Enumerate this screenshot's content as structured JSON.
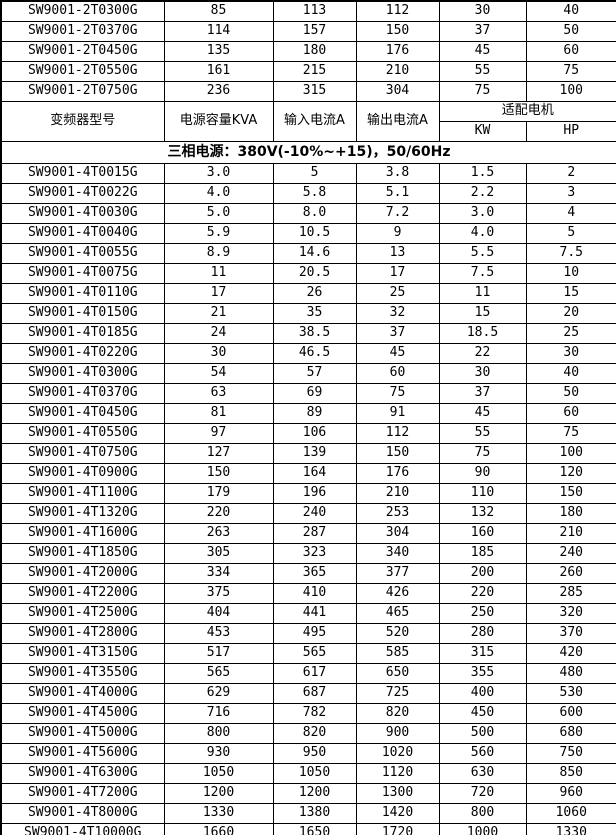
{
  "table": {
    "headers": {
      "model": "变频器型号",
      "kva": "电源容量KVA",
      "input_current": "输入电流A",
      "output_current": "输出电流A",
      "adapted_motor": "适配电机",
      "kw": "KW",
      "hp": "HP"
    },
    "phase_banner": "三相电源：380V(-10%~+15)，50/60Hz",
    "rows_2t": [
      [
        "SW9001-2T0300G",
        "85",
        "113",
        "112",
        "30",
        "40"
      ],
      [
        "SW9001-2T0370G",
        "114",
        "157",
        "150",
        "37",
        "50"
      ],
      [
        "SW9001-2T0450G",
        "135",
        "180",
        "176",
        "45",
        "60"
      ],
      [
        "SW9001-2T0550G",
        "161",
        "215",
        "210",
        "55",
        "75"
      ],
      [
        "SW9001-2T0750G",
        "236",
        "315",
        "304",
        "75",
        "100"
      ]
    ],
    "rows_4t": [
      [
        "SW9001-4T0015G",
        "3.0",
        "5",
        "3.8",
        "1.5",
        "2"
      ],
      [
        "SW9001-4T0022G",
        "4.0",
        "5.8",
        "5.1",
        "2.2",
        "3"
      ],
      [
        "SW9001-4T0030G",
        "5.0",
        "8.0",
        "7.2",
        "3.0",
        "4"
      ],
      [
        "SW9001-4T0040G",
        "5.9",
        "10.5",
        "9",
        "4.0",
        "5"
      ],
      [
        "SW9001-4T0055G",
        "8.9",
        "14.6",
        "13",
        "5.5",
        "7.5"
      ],
      [
        "SW9001-4T0075G",
        "11",
        "20.5",
        "17",
        "7.5",
        "10"
      ],
      [
        "SW9001-4T0110G",
        "17",
        "26",
        "25",
        "11",
        "15"
      ],
      [
        "SW9001-4T0150G",
        "21",
        "35",
        "32",
        "15",
        "20"
      ],
      [
        "SW9001-4T0185G",
        "24",
        "38.5",
        "37",
        "18.5",
        "25"
      ],
      [
        "SW9001-4T0220G",
        "30",
        "46.5",
        "45",
        "22",
        "30"
      ],
      [
        "SW9001-4T0300G",
        "54",
        "57",
        "60",
        "30",
        "40"
      ],
      [
        "SW9001-4T0370G",
        "63",
        "69",
        "75",
        "37",
        "50"
      ],
      [
        "SW9001-4T0450G",
        "81",
        "89",
        "91",
        "45",
        "60"
      ],
      [
        "SW9001-4T0550G",
        "97",
        "106",
        "112",
        "55",
        "75"
      ],
      [
        "SW9001-4T0750G",
        "127",
        "139",
        "150",
        "75",
        "100"
      ],
      [
        "SW9001-4T0900G",
        "150",
        "164",
        "176",
        "90",
        "120"
      ],
      [
        "SW9001-4T1100G",
        "179",
        "196",
        "210",
        "110",
        "150"
      ],
      [
        "SW9001-4T1320G",
        "220",
        "240",
        "253",
        "132",
        "180"
      ],
      [
        "SW9001-4T1600G",
        "263",
        "287",
        "304",
        "160",
        "210"
      ],
      [
        "SW9001-4T1850G",
        "305",
        "323",
        "340",
        "185",
        "240"
      ],
      [
        "SW9001-4T2000G",
        "334",
        "365",
        "377",
        "200",
        "260"
      ],
      [
        "SW9001-4T2200G",
        "375",
        "410",
        "426",
        "220",
        "285"
      ],
      [
        "SW9001-4T2500G",
        "404",
        "441",
        "465",
        "250",
        "320"
      ],
      [
        "SW9001-4T2800G",
        "453",
        "495",
        "520",
        "280",
        "370"
      ],
      [
        "SW9001-4T3150G",
        "517",
        "565",
        "585",
        "315",
        "420"
      ],
      [
        "SW9001-4T3550G",
        "565",
        "617",
        "650",
        "355",
        "480"
      ],
      [
        "SW9001-4T4000G",
        "629",
        "687",
        "725",
        "400",
        "530"
      ],
      [
        "SW9001-4T4500G",
        "716",
        "782",
        "820",
        "450",
        "600"
      ],
      [
        "SW9001-4T5000G",
        "800",
        "820",
        "900",
        "500",
        "680"
      ],
      [
        "SW9001-4T5600G",
        "930",
        "950",
        "1020",
        "560",
        "750"
      ],
      [
        "SW9001-4T6300G",
        "1050",
        "1050",
        "1120",
        "630",
        "850"
      ],
      [
        "SW9001-4T7200G",
        "1200",
        "1200",
        "1300",
        "720",
        "960"
      ],
      [
        "SW9001-4T8000G",
        "1330",
        "1380",
        "1420",
        "800",
        "1060"
      ],
      [
        "SW9001-4T10000G",
        "1660",
        "1650",
        "1720",
        "1000",
        "1330"
      ]
    ]
  }
}
